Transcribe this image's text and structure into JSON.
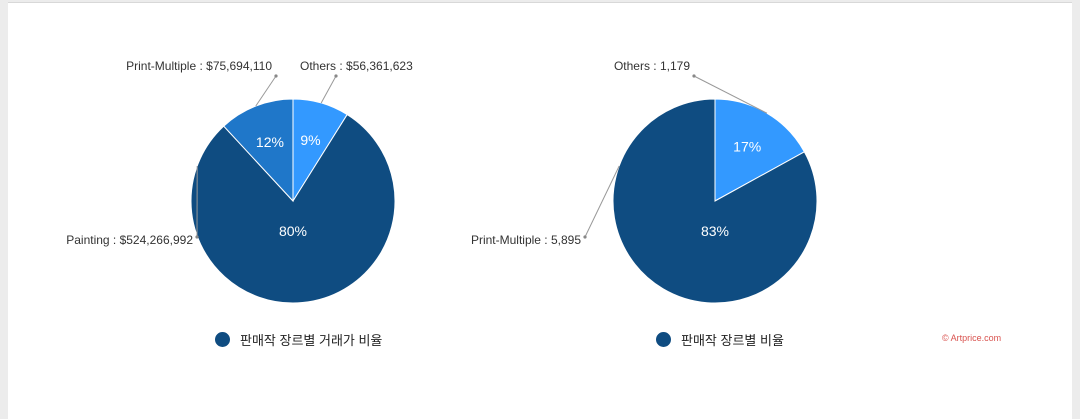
{
  "chart_data": [
    {
      "type": "pie",
      "slices": [
        {
          "label": "Painting",
          "display_value": "$524,266,992",
          "percent": 80,
          "color": "#0f4c81"
        },
        {
          "label": "Print-Multiple",
          "display_value": "$75,694,110",
          "percent": 12,
          "color": "#1f77c9"
        },
        {
          "label": "Others",
          "display_value": "$56,361,623",
          "percent": 9,
          "color": "#3399ff"
        }
      ],
      "legend": "판매작 장르별 거래가 비율",
      "legend_color": "#0f4c81",
      "legend_position": "bottom"
    },
    {
      "type": "pie",
      "slices": [
        {
          "label": "Print-Multiple",
          "display_value": "5,895",
          "percent": 83,
          "color": "#0f4c81"
        },
        {
          "label": "Others",
          "display_value": "1,179",
          "percent": 17,
          "color": "#3399ff"
        }
      ],
      "legend": "판매작 장르별 비율",
      "legend_color": "#0f4c81",
      "legend_position": "bottom"
    }
  ],
  "watermark": "© Artprice.com"
}
